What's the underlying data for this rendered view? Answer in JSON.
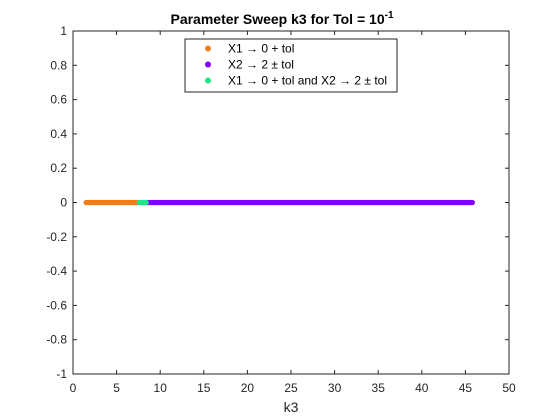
{
  "chart_data": {
    "type": "scatter",
    "title": "Parameter Sweep k3 for Tol = 10",
    "title_exponent": "-1",
    "xlabel": "k3",
    "ylabel": "",
    "xlim": [
      0,
      50
    ],
    "ylim": [
      -1,
      1
    ],
    "x_ticks": [
      0,
      5,
      10,
      15,
      20,
      25,
      30,
      35,
      40,
      45,
      50
    ],
    "x_tick_labels": [
      "0",
      "5",
      "10",
      "15",
      "20",
      "25",
      "30",
      "35",
      "40",
      "45",
      "50"
    ],
    "y_ticks": [
      1,
      0.8,
      0.6,
      0.4,
      0.2,
      0,
      -0.2,
      -0.4,
      -0.6,
      -0.8,
      -1
    ],
    "y_tick_labels": [
      "1",
      "0.8",
      "0.6",
      "0.4",
      "0.2",
      "0",
      "-0.2",
      "-0.4",
      "-0.6",
      "-0.8",
      "-1"
    ],
    "grid": false,
    "legend_position": "top-center",
    "series": [
      {
        "name": "X1 → 0 + tol",
        "color": "#f07f1a",
        "x_start": 1.5,
        "x_end": 7.5,
        "x_step": 0.1,
        "y": 0
      },
      {
        "name": "X2 → 2 ± tol",
        "color": "#7f00ff",
        "x_start": 8.5,
        "x_end": 45.8,
        "x_step": 0.1,
        "y": 0
      },
      {
        "name": "X1 → 0 + tol and X2 → 2 ± tol",
        "color": "#1de58a",
        "x_start": 7.6,
        "x_end": 8.4,
        "x_step": 0.1,
        "y": 0
      }
    ]
  }
}
